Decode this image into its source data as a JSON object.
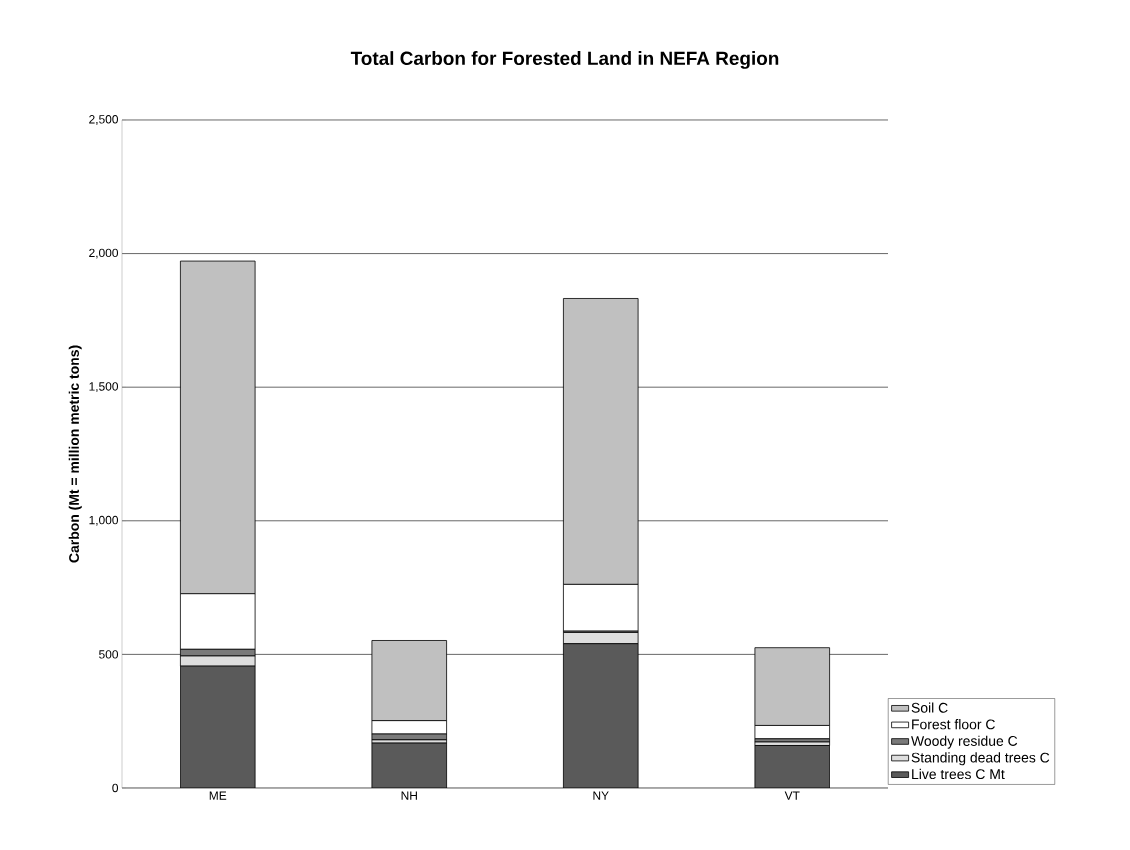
{
  "chart_data": {
    "type": "bar",
    "title": "Total Carbon for Forested Land in NEFA Region",
    "ylabel": "Carbon (Mt = million metric tons)",
    "categories": [
      "ME",
      "NH",
      "NY",
      "VT"
    ],
    "stacked": true,
    "series": [
      {
        "name": "Live trees C Mt",
        "color": "#5a5a5a",
        "values": [
          456,
          168,
          540,
          159
        ]
      },
      {
        "name": "Standing dead trees C",
        "color": "#dedede",
        "values": [
          38,
          12,
          42,
          13
        ]
      },
      {
        "name": "Woody residue C",
        "color": "#7a7a7a",
        "values": [
          25,
          22,
          5,
          12
        ]
      },
      {
        "name": "Forest floor C",
        "color": "#ffffff",
        "values": [
          208,
          50,
          175,
          50
        ]
      },
      {
        "name": "Soil C",
        "color": "#c0c0c0",
        "values": [
          1245,
          300,
          1070,
          291
        ]
      }
    ],
    "ylim": [
      0,
      2500
    ],
    "yticks": [
      0,
      500,
      {
        "value": 1000,
        "label": "1,000"
      },
      {
        "value": 1500,
        "label": "1,500"
      },
      {
        "value": 2000,
        "label": "2,000"
      },
      {
        "value": 2500,
        "label": "2,500"
      }
    ],
    "grid": "y",
    "legend": "right"
  }
}
